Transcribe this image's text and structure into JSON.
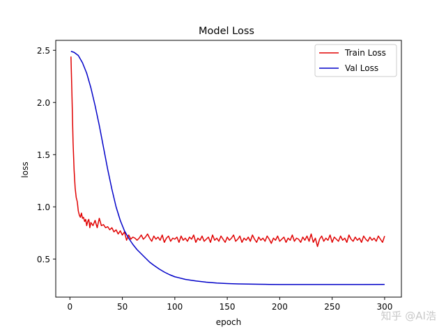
{
  "chart_data": {
    "type": "line",
    "title": "Model Loss",
    "xlabel": "epoch",
    "ylabel": "loss",
    "xlim": [
      -13.5,
      316
    ],
    "ylim": [
      0.135,
      2.595
    ],
    "xticks": [
      0,
      50,
      100,
      150,
      200,
      250,
      300
    ],
    "yticks": [
      0.5,
      1.0,
      1.5,
      2.0,
      2.5
    ],
    "xtick_labels": [
      "0",
      "50",
      "100",
      "150",
      "200",
      "250",
      "300"
    ],
    "ytick_labels": [
      "0.5",
      "1.0",
      "1.5",
      "2.0",
      "2.5"
    ],
    "grid": false,
    "legend_position": "top-right",
    "series": [
      {
        "name": "Train Loss",
        "color": "#e00000",
        "x": [
          1,
          2,
          3,
          4,
          5,
          6,
          7,
          8,
          9,
          10,
          11,
          12,
          13,
          14,
          15,
          16,
          17,
          18,
          19,
          20,
          22,
          24,
          26,
          28,
          30,
          32,
          34,
          36,
          38,
          40,
          42,
          44,
          46,
          48,
          50,
          52,
          54,
          56,
          58,
          60,
          62,
          64,
          66,
          68,
          70,
          72,
          74,
          76,
          78,
          80,
          82,
          84,
          86,
          88,
          90,
          92,
          94,
          96,
          98,
          100,
          102,
          104,
          106,
          108,
          110,
          112,
          114,
          116,
          118,
          120,
          122,
          124,
          126,
          128,
          130,
          132,
          134,
          136,
          138,
          140,
          142,
          144,
          146,
          148,
          150,
          152,
          154,
          156,
          158,
          160,
          162,
          164,
          166,
          168,
          170,
          172,
          174,
          176,
          178,
          180,
          182,
          184,
          186,
          188,
          190,
          192,
          194,
          196,
          198,
          200,
          202,
          204,
          206,
          208,
          210,
          212,
          214,
          216,
          218,
          220,
          222,
          224,
          226,
          228,
          230,
          232,
          234,
          236,
          238,
          240,
          242,
          244,
          246,
          248,
          250,
          252,
          254,
          256,
          258,
          260,
          262,
          264,
          266,
          268,
          270,
          272,
          274,
          276,
          278,
          280,
          282,
          284,
          286,
          288,
          290,
          292,
          294,
          296,
          298,
          300
        ],
        "values": [
          2.44,
          2.05,
          1.62,
          1.35,
          1.18,
          1.09,
          1.05,
          0.96,
          0.92,
          0.9,
          0.94,
          0.89,
          0.9,
          0.86,
          0.88,
          0.82,
          0.86,
          0.88,
          0.8,
          0.85,
          0.82,
          0.87,
          0.8,
          0.89,
          0.82,
          0.83,
          0.8,
          0.81,
          0.78,
          0.8,
          0.76,
          0.78,
          0.74,
          0.77,
          0.73,
          0.76,
          0.68,
          0.73,
          0.69,
          0.71,
          0.7,
          0.68,
          0.7,
          0.73,
          0.69,
          0.71,
          0.74,
          0.7,
          0.67,
          0.72,
          0.69,
          0.71,
          0.68,
          0.73,
          0.66,
          0.7,
          0.72,
          0.67,
          0.7,
          0.69,
          0.71,
          0.66,
          0.72,
          0.68,
          0.7,
          0.67,
          0.71,
          0.69,
          0.73,
          0.66,
          0.7,
          0.68,
          0.72,
          0.67,
          0.69,
          0.71,
          0.66,
          0.73,
          0.68,
          0.7,
          0.67,
          0.72,
          0.69,
          0.66,
          0.71,
          0.68,
          0.7,
          0.73,
          0.67,
          0.69,
          0.72,
          0.66,
          0.7,
          0.68,
          0.71,
          0.67,
          0.73,
          0.69,
          0.66,
          0.71,
          0.68,
          0.7,
          0.67,
          0.72,
          0.69,
          0.65,
          0.7,
          0.68,
          0.72,
          0.67,
          0.69,
          0.71,
          0.66,
          0.7,
          0.68,
          0.73,
          0.67,
          0.7,
          0.69,
          0.66,
          0.71,
          0.68,
          0.72,
          0.67,
          0.74,
          0.66,
          0.7,
          0.62,
          0.69,
          0.72,
          0.67,
          0.7,
          0.68,
          0.73,
          0.66,
          0.71,
          0.69,
          0.67,
          0.72,
          0.68,
          0.7,
          0.66,
          0.73,
          0.69,
          0.67,
          0.71,
          0.68,
          0.7,
          0.66,
          0.72,
          0.69,
          0.67,
          0.71,
          0.68,
          0.7,
          0.67,
          0.72,
          0.69,
          0.66,
          0.72
        ]
      },
      {
        "name": "Val Loss",
        "color": "#0000c8",
        "x": [
          1,
          4,
          8,
          12,
          16,
          20,
          24,
          28,
          32,
          36,
          40,
          44,
          48,
          52,
          56,
          60,
          64,
          68,
          72,
          76,
          80,
          85,
          90,
          95,
          100,
          110,
          120,
          130,
          140,
          150,
          160,
          170,
          180,
          190,
          200,
          220,
          240,
          260,
          280,
          300
        ],
        "values": [
          2.49,
          2.48,
          2.45,
          2.38,
          2.28,
          2.14,
          1.97,
          1.78,
          1.57,
          1.36,
          1.17,
          1.0,
          0.87,
          0.77,
          0.7,
          0.64,
          0.59,
          0.55,
          0.51,
          0.47,
          0.44,
          0.405,
          0.375,
          0.35,
          0.33,
          0.305,
          0.29,
          0.278,
          0.27,
          0.265,
          0.262,
          0.26,
          0.258,
          0.257,
          0.256,
          0.256,
          0.256,
          0.256,
          0.256,
          0.257
        ]
      }
    ]
  },
  "watermark": "知乎 @AI浩"
}
